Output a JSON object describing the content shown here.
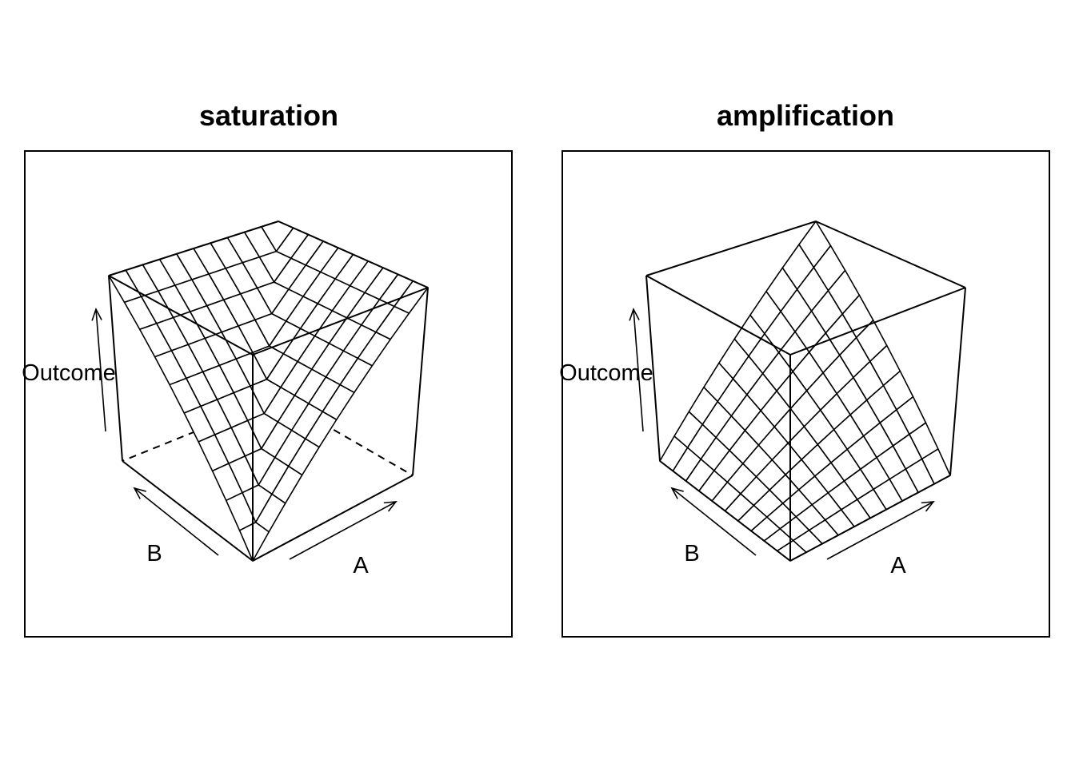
{
  "chart_data": [
    {
      "type": "surface",
      "title": "saturation",
      "xlabel": "A",
      "ylabel": "B",
      "zlabel": "Outcome",
      "grid_size": 11,
      "xlim": [
        0,
        1
      ],
      "ylim": [
        0,
        1
      ],
      "zlim": [
        0,
        1
      ],
      "surface": "z = max(A, B)"
    },
    {
      "type": "surface",
      "title": "amplification",
      "xlabel": "A",
      "ylabel": "B",
      "zlabel": "Outcome",
      "grid_size": 11,
      "xlim": [
        0,
        1
      ],
      "ylim": [
        0,
        1
      ],
      "zlim": [
        0,
        1
      ],
      "surface": "z = A * B"
    }
  ]
}
